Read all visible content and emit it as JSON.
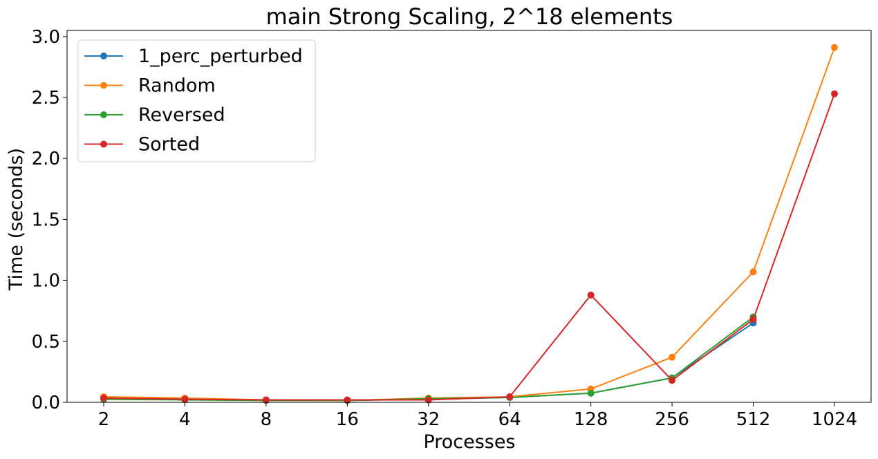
{
  "chart_data": {
    "type": "line",
    "title": "main Strong Scaling, 2^18 elements",
    "xlabel": "Processes",
    "ylabel": "Time (seconds)",
    "categories": [
      "2",
      "4",
      "8",
      "16",
      "32",
      "64",
      "128",
      "256",
      "512",
      "1024"
    ],
    "ylim": [
      0,
      3.05
    ],
    "yticks": [
      "0.0",
      "0.5",
      "1.0",
      "1.5",
      "2.0",
      "2.5",
      "3.0"
    ],
    "grid": false,
    "legend_position": "top-left",
    "series": [
      {
        "name": "1_perc_perturbed",
        "color": "#1f77b4",
        "values": [
          0.03,
          0.025,
          0.02,
          0.015,
          0.025,
          0.04,
          0.075,
          0.2,
          0.65,
          null
        ]
      },
      {
        "name": "Random",
        "color": "#ff7f0e",
        "values": [
          0.045,
          0.035,
          0.02,
          0.015,
          0.035,
          0.045,
          0.11,
          0.37,
          1.07,
          2.91
        ]
      },
      {
        "name": "Reversed",
        "color": "#2ca02c",
        "values": [
          0.025,
          0.02,
          0.015,
          0.015,
          0.03,
          0.04,
          0.075,
          0.2,
          0.7,
          null
        ]
      },
      {
        "name": "Sorted",
        "color": "#d62728",
        "values": [
          0.035,
          0.025,
          0.02,
          0.02,
          0.02,
          0.045,
          0.88,
          0.18,
          0.68,
          2.53
        ]
      }
    ]
  }
}
